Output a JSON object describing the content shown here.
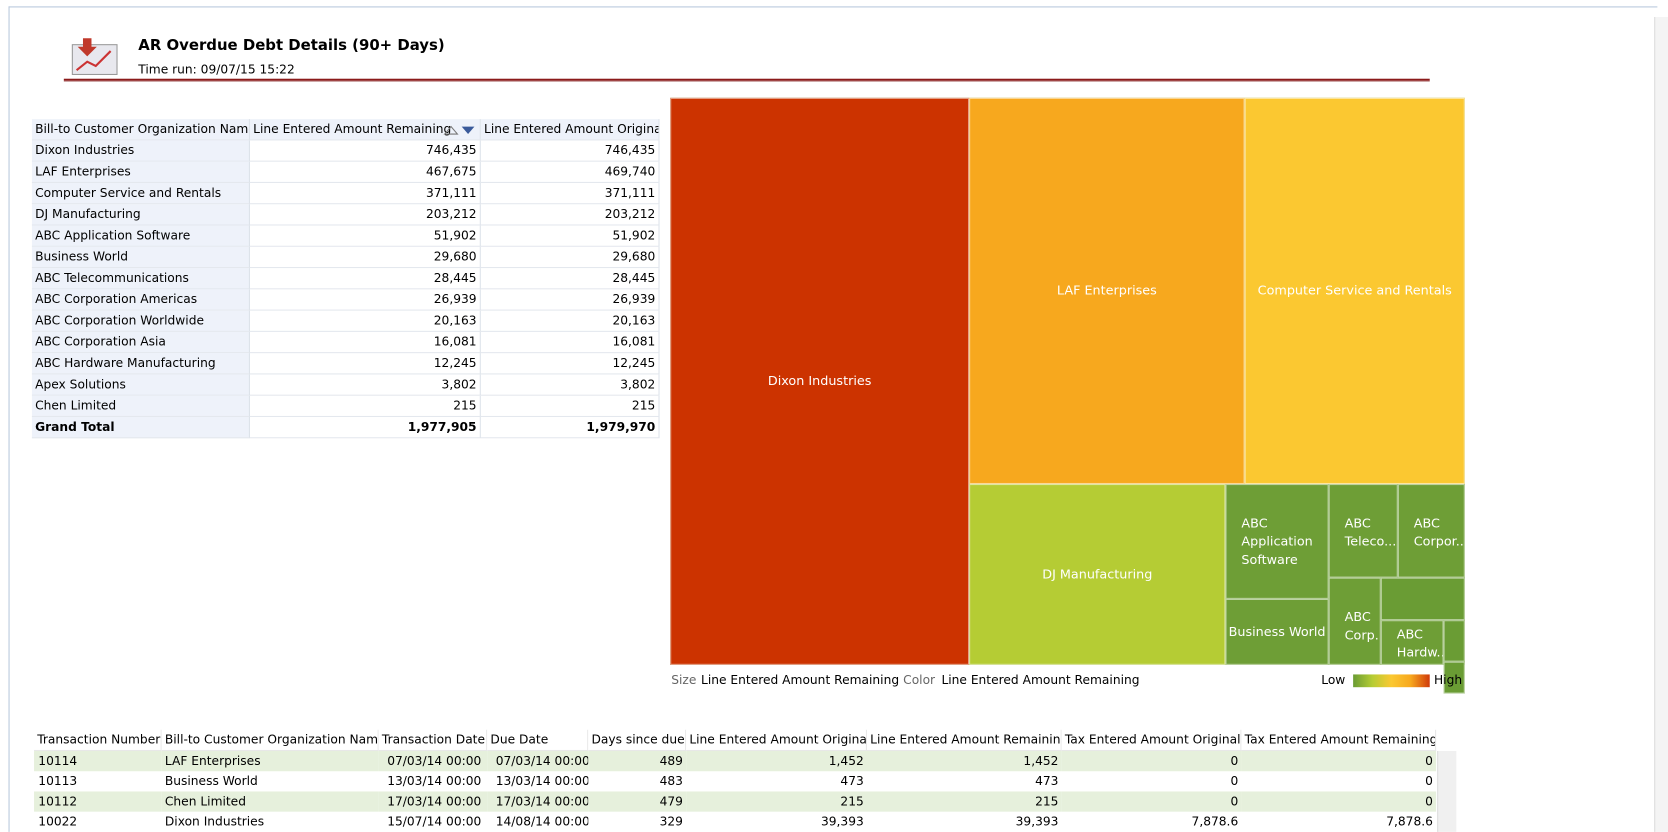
{
  "header": {
    "title": "AR Overdue Debt Details (90+ Days)",
    "time_run": "Time run: 09/07/15 15:22"
  },
  "pivot": {
    "columns": [
      "Bill-to Customer Organization Name",
      "Line Entered Amount Remaining",
      "Line Entered Amount Original"
    ],
    "rows": [
      [
        "Dixon Industries",
        "746,435",
        "746,435"
      ],
      [
        "LAF Enterprises",
        "467,675",
        "469,740"
      ],
      [
        "Computer Service and Rentals",
        "371,111",
        "371,111"
      ],
      [
        "DJ Manufacturing",
        "203,212",
        "203,212"
      ],
      [
        "ABC Application Software",
        "51,902",
        "51,902"
      ],
      [
        "Business World",
        "29,680",
        "29,680"
      ],
      [
        "ABC Telecommunications",
        "28,445",
        "28,445"
      ],
      [
        "ABC Corporation Americas",
        "26,939",
        "26,939"
      ],
      [
        "ABC Corporation Worldwide",
        "20,163",
        "20,163"
      ],
      [
        "ABC Corporation Asia",
        "16,081",
        "16,081"
      ],
      [
        "ABC Hardware Manufacturing",
        "12,245",
        "12,245"
      ],
      [
        "Apex Solutions",
        "3,802",
        "3,802"
      ],
      [
        "Chen Limited",
        "215",
        "215"
      ]
    ],
    "total": [
      "Grand Total",
      "1,977,905",
      "1,979,970"
    ]
  },
  "treemap": {
    "labels": [
      "Dixon Industries",
      "LAF Enterprises",
      "Computer Service and Rentals",
      "DJ Manufacturing",
      "ABC Application Software",
      "ABC Teleco...",
      "ABC Corpor...",
      "Business World",
      "ABC Corp...",
      "ABC Hardw..."
    ],
    "legend": {
      "size_label": "Size",
      "size_measure": "Line Entered Amount Remaining",
      "color_label": "Color",
      "color_measure": "Line Entered Amount Remaining",
      "low": "Low",
      "high": "High"
    }
  },
  "transactions": {
    "columns": [
      "Transaction Number",
      "Bill-to Customer Organization Name",
      "Transaction Date",
      "Due Date",
      "Days since due",
      "Line Entered Amount Original",
      "Line Entered Amount Remaining",
      "Tax Entered Amount Original",
      "Tax Entered Amount Remaining"
    ],
    "rows": [
      [
        "10114",
        "LAF Enterprises",
        "07/03/14 00:00",
        "07/03/14 00:00",
        "489",
        "1,452",
        "1,452",
        "0",
        "0"
      ],
      [
        "10113",
        "Business World",
        "13/03/14 00:00",
        "13/03/14 00:00",
        "483",
        "473",
        "473",
        "0",
        "0"
      ],
      [
        "10112",
        "Chen Limited",
        "17/03/14 00:00",
        "17/03/14 00:00",
        "479",
        "215",
        "215",
        "0",
        "0"
      ],
      [
        "10022",
        "Dixon Industries",
        "15/07/14 00:00",
        "14/08/14 00:00",
        "329",
        "39,393",
        "39,393",
        "7,878.6",
        "7,878.6"
      ]
    ]
  }
}
